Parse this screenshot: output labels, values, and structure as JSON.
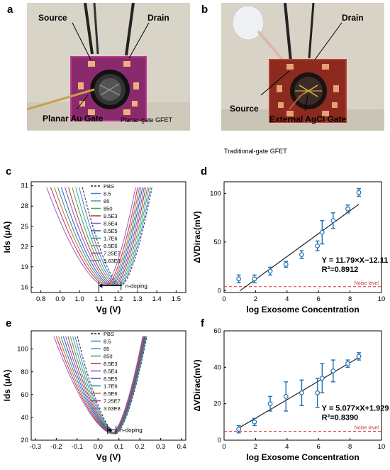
{
  "panels": {
    "a": {
      "letter": "a",
      "labels": {
        "source": "Source",
        "drain": "Drain",
        "gate": "Planar Au Gate",
        "caption": "Planar-gate GFET"
      },
      "colors": {
        "bg": "#d9d4c8",
        "chip": "#8a2a6c",
        "chip_edge": "#b63d8a",
        "pad": "#e8b27a",
        "gold": "#c9a04a"
      }
    },
    "b": {
      "letter": "b",
      "labels": {
        "source": "Source",
        "drain": "Drain",
        "gate": "External AgCl Gate",
        "caption": "Traditional-gate GFET"
      },
      "colors": {
        "bg": "#d8d3c6",
        "chip": "#8c2a20",
        "chip_edge": "#b4412e",
        "pad": "#e6a173",
        "gold": "#c9a04a"
      }
    },
    "c": {
      "letter": "c",
      "annotation": "n-doping"
    },
    "d": {
      "letter": "d"
    },
    "e": {
      "letter": "e",
      "annotation": "n-doping"
    },
    "f": {
      "letter": "f"
    }
  },
  "chart_data": [
    {
      "panel": "c",
      "type": "line",
      "xlabel": "Vg (V)",
      "ylabel": "Ids (μA)",
      "xlim": [
        0.75,
        1.55
      ],
      "ylim": [
        15.2,
        31.6
      ],
      "xticks": [
        "0.8",
        "0.9",
        "1.0",
        "1.1",
        "1.2",
        "1.3",
        "1.4",
        "1.5"
      ],
      "yticks": [
        "16",
        "19",
        "22",
        "25",
        "28",
        "31"
      ],
      "ytick_values": [
        16,
        19,
        22,
        25,
        28,
        31
      ],
      "xtick_values": [
        0.8,
        0.9,
        1.0,
        1.1,
        1.2,
        1.3,
        1.4,
        1.5
      ],
      "series": [
        {
          "name": "PBS",
          "vmin": 1.215,
          "dashed": true,
          "color": "#1a1a3a"
        },
        {
          "name": "8.5",
          "vmin": 1.208,
          "color": "#4a7fc0"
        },
        {
          "name": "85",
          "vmin": 1.2,
          "color": "#3aa0a0"
        },
        {
          "name": "850",
          "vmin": 1.192,
          "color": "#40a060"
        },
        {
          "name": "8.5E3",
          "vmin": 1.183,
          "color": "#b83030"
        },
        {
          "name": "8.5E4",
          "vmin": 1.175,
          "color": "#7a5ab0"
        },
        {
          "name": "8.5E5",
          "vmin": 1.166,
          "color": "#3050c0"
        },
        {
          "name": "1.7E6",
          "vmin": 1.158,
          "color": "#2a8a8a"
        },
        {
          "name": "8.5E6",
          "vmin": 1.15,
          "color": "#c06a30"
        },
        {
          "name": "7.25E7",
          "vmin": 1.141,
          "color": "#c02a60"
        },
        {
          "name": "3.63E8",
          "vmin": 1.13,
          "color": "#9a60c0"
        }
      ],
      "shift": {
        "from": 1.215,
        "to": 1.1,
        "y": 16.2
      }
    },
    {
      "panel": "d",
      "type": "scatter",
      "xlabel": "log Exosome Concentration",
      "ylabel": "ΔVDirac(mV)",
      "xlim": [
        0,
        10
      ],
      "ylim": [
        -2,
        112
      ],
      "xticks": [
        "0",
        "2",
        "4",
        "6",
        "8",
        "10"
      ],
      "xtick_values": [
        0,
        2,
        4,
        6,
        8,
        10
      ],
      "yticks": [
        "0",
        "50",
        "100"
      ],
      "ytick_values": [
        0,
        50,
        100
      ],
      "x": [
        0.93,
        1.93,
        2.93,
        3.93,
        4.93,
        5.93,
        6.23,
        6.93,
        7.86,
        8.56
      ],
      "y": [
        12,
        12,
        20,
        27,
        37,
        46,
        60,
        72,
        84,
        101
      ],
      "err": [
        4,
        4,
        4,
        3,
        4,
        5,
        12,
        8,
        4,
        4
      ],
      "fit": {
        "slope": 11.79,
        "intercept": -12.11,
        "x_range": [
          1.0,
          8.56
        ]
      },
      "equation": "Y = 11.79×X−12.11",
      "r2": "R²=0.8912",
      "noise_level": 4,
      "noise_label": "Noise level"
    },
    {
      "panel": "e",
      "type": "line",
      "xlabel": "Vg (V)",
      "ylabel": "Ids (μA)",
      "xlim": [
        -0.32,
        0.42
      ],
      "ylim": [
        20,
        116
      ],
      "xticks": [
        "-0.3",
        "-0.2",
        "-0.1",
        "0.0",
        "0.1",
        "0.2",
        "0.3",
        "0.4"
      ],
      "xtick_values": [
        -0.3,
        -0.2,
        -0.1,
        0.0,
        0.1,
        0.2,
        0.3,
        0.4
      ],
      "yticks": [
        "20",
        "40",
        "60",
        "80",
        "100"
      ],
      "ytick_values": [
        20,
        40,
        60,
        80,
        100
      ],
      "series": [
        {
          "name": "PBS",
          "vmin": 0.086,
          "dashed": true,
          "color": "#1a1a3a"
        },
        {
          "name": "8.5",
          "vmin": 0.084,
          "color": "#4a7fc0"
        },
        {
          "name": "85",
          "vmin": 0.082,
          "color": "#3aa0a0"
        },
        {
          "name": "850",
          "vmin": 0.08,
          "color": "#40a060"
        },
        {
          "name": "8.5E3",
          "vmin": 0.078,
          "color": "#b83030"
        },
        {
          "name": "8.5E4",
          "vmin": 0.076,
          "color": "#7a5ab0"
        },
        {
          "name": "8.5E5",
          "vmin": 0.074,
          "color": "#3050c0"
        },
        {
          "name": "1.7E6",
          "vmin": 0.072,
          "color": "#2a8a8a"
        },
        {
          "name": "8.5E6",
          "vmin": 0.07,
          "color": "#c06a30"
        },
        {
          "name": "7.25E7",
          "vmin": 0.068,
          "color": "#c02a60"
        },
        {
          "name": "3.63E8",
          "vmin": 0.066,
          "color": "#9a60c0"
        }
      ],
      "shift": {
        "from": 0.086,
        "to": 0.046,
        "y": 29
      }
    },
    {
      "panel": "f",
      "type": "scatter",
      "xlabel": "log Exosome Concentration",
      "ylabel": "ΔVDirac(mV)",
      "xlim": [
        0,
        10
      ],
      "ylim": [
        0,
        60
      ],
      "xticks": [
        "0",
        "2",
        "4",
        "6",
        "8",
        "10"
      ],
      "xtick_values": [
        0,
        2,
        4,
        6,
        8,
        10
      ],
      "yticks": [
        "0",
        "20",
        "40",
        "60"
      ],
      "ytick_values": [
        0,
        20,
        40,
        60
      ],
      "x": [
        0.93,
        1.93,
        2.93,
        3.93,
        4.93,
        5.93,
        6.23,
        6.93,
        7.86,
        8.56
      ],
      "y": [
        6,
        10,
        20,
        24,
        26,
        26,
        34,
        38,
        42,
        46
      ],
      "err": [
        2,
        2,
        4,
        8,
        7,
        8,
        8,
        6,
        2,
        2
      ],
      "fit": {
        "slope": 5.077,
        "intercept": 1.929,
        "x_range": [
          0.9,
          8.56
        ]
      },
      "equation": "Y = 5.077×X+1.929",
      "r2": "R²=0.8390",
      "noise_level": 4.8,
      "noise_label": "Noise level"
    }
  ]
}
